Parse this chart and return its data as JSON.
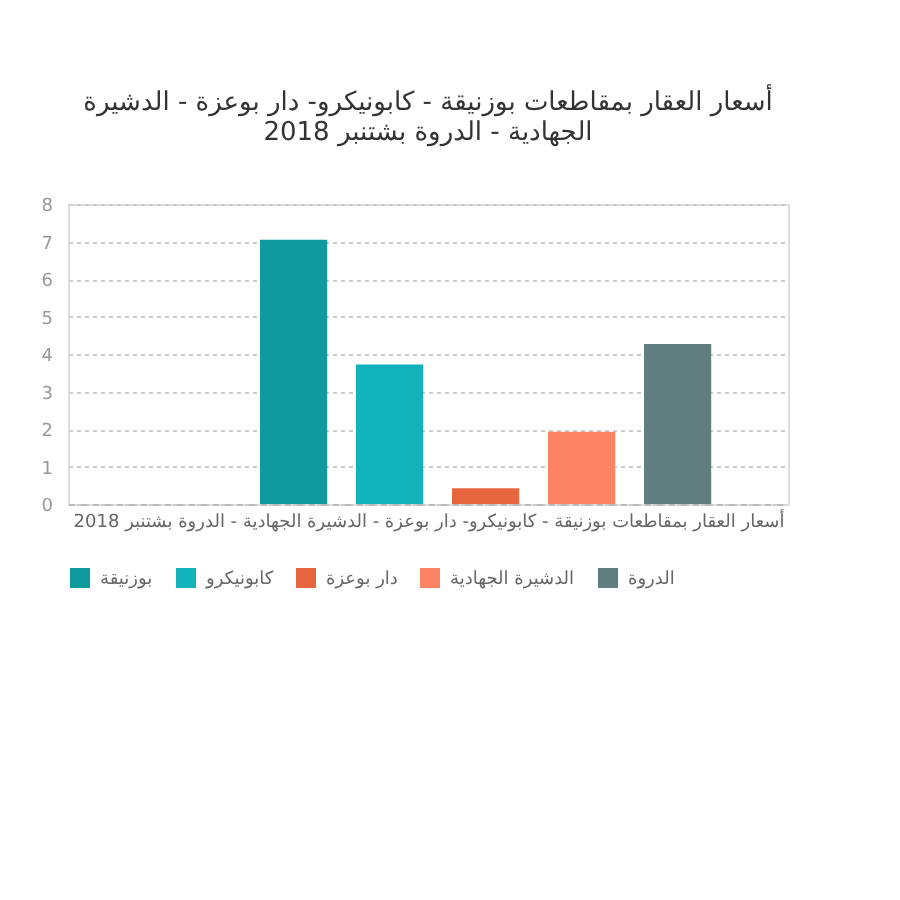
{
  "chart_data": {
    "type": "bar",
    "title": "أسعار العقار بمقاطعات بوزنيقة - كابونيكرو- دار بوعزة - الدشيرة الجهادية - الدروة بشتنبر 2018",
    "xlabel": "أسعار العقار بمقاطعات بوزنيقة - كابونيكرو- دار بوعزة - الدشيرة الجهادية - الدروة بشتنبر 2018",
    "categories": [
      null
    ],
    "series": [
      {
        "name": "بوزنيقة",
        "color": "#0f9aa0",
        "values": [
          7.05
        ]
      },
      {
        "name": "كابونيكرو",
        "color": "#12b2bb",
        "values": [
          3.72
        ]
      },
      {
        "name": "دار بوعزة",
        "color": "#e8663f",
        "values": [
          0.42
        ]
      },
      {
        "name": "الدشيرة الجهادية",
        "color": "#fc8363",
        "values": [
          1.93
        ]
      },
      {
        "name": "الدروة",
        "color": "#607d80",
        "values": [
          4.27
        ]
      }
    ],
    "ylim": [
      0,
      8
    ],
    "yticks": [
      0,
      1,
      2,
      3,
      4,
      5,
      6,
      7,
      8
    ],
    "grid": "y",
    "legend": "bottom"
  }
}
